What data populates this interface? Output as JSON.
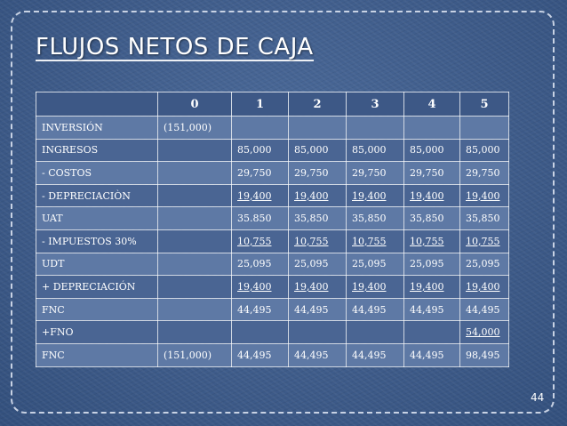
{
  "title": "FLUJOS NETOS DE CAJA",
  "slide_number": "44",
  "table": {
    "columns": [
      "",
      "",
      "0",
      "1",
      "2",
      "3",
      "4",
      "5"
    ],
    "rows": [
      {
        "label": "INVERSIÓN",
        "c0": "(151,000)",
        "c1": "",
        "c2": "",
        "c3": "",
        "c4": "",
        "c5": ""
      },
      {
        "label": "INGRESOS",
        "c0": "",
        "c1": "85,000",
        "c2": "85,000",
        "c3": "85,000",
        "c4": "85,000",
        "c5": "85,000"
      },
      {
        "label": "- COSTOS",
        "c0": "",
        "c1": "29,750",
        "c2": "29,750",
        "c3": "29,750",
        "c4": "29,750",
        "c5": "29,750"
      },
      {
        "label": "- DEPRECIACIÒN",
        "c0": "",
        "c1": "19,400",
        "c2": "19,400",
        "c3": "19,400",
        "c4": "19,400",
        "c5": "19,400"
      },
      {
        "label": "UAT",
        "c0": "",
        "c1": "35.850",
        "c2": "35,850",
        "c3": "35,850",
        "c4": "35,850",
        "c5": "35,850"
      },
      {
        "label": "- IMPUESTOS 30%",
        "c0": "",
        "c1": "10,755",
        "c2": "10,755",
        "c3": "10,755",
        "c4": "10,755",
        "c5": "10,755"
      },
      {
        "label": "UDT",
        "c0": "",
        "c1": "25,095",
        "c2": "25,095",
        "c3": "25,095",
        "c4": "25,095",
        "c5": "25,095"
      },
      {
        "label": "+ DEPRECIACIÓN",
        "c0": "",
        "c1": "19,400",
        "c2": "19,400",
        "c3": "19,400",
        "c4": "19,400",
        "c5": "19,400"
      },
      {
        "label": "FNC",
        "c0": "",
        "c1": "44,495",
        "c2": "44,495",
        "c3": "44,495",
        "c4": "44,495",
        "c5": "44,495"
      },
      {
        "label": "+FNO",
        "c0": "",
        "c1": "",
        "c2": "",
        "c3": "",
        "c4": "",
        "c5": "54,000"
      },
      {
        "label": "FNC",
        "c0": "(151,000)",
        "c1": "44,495",
        "c2": "44,495",
        "c3": "44,495",
        "c4": "44,495",
        "c5": "98,495"
      }
    ]
  }
}
